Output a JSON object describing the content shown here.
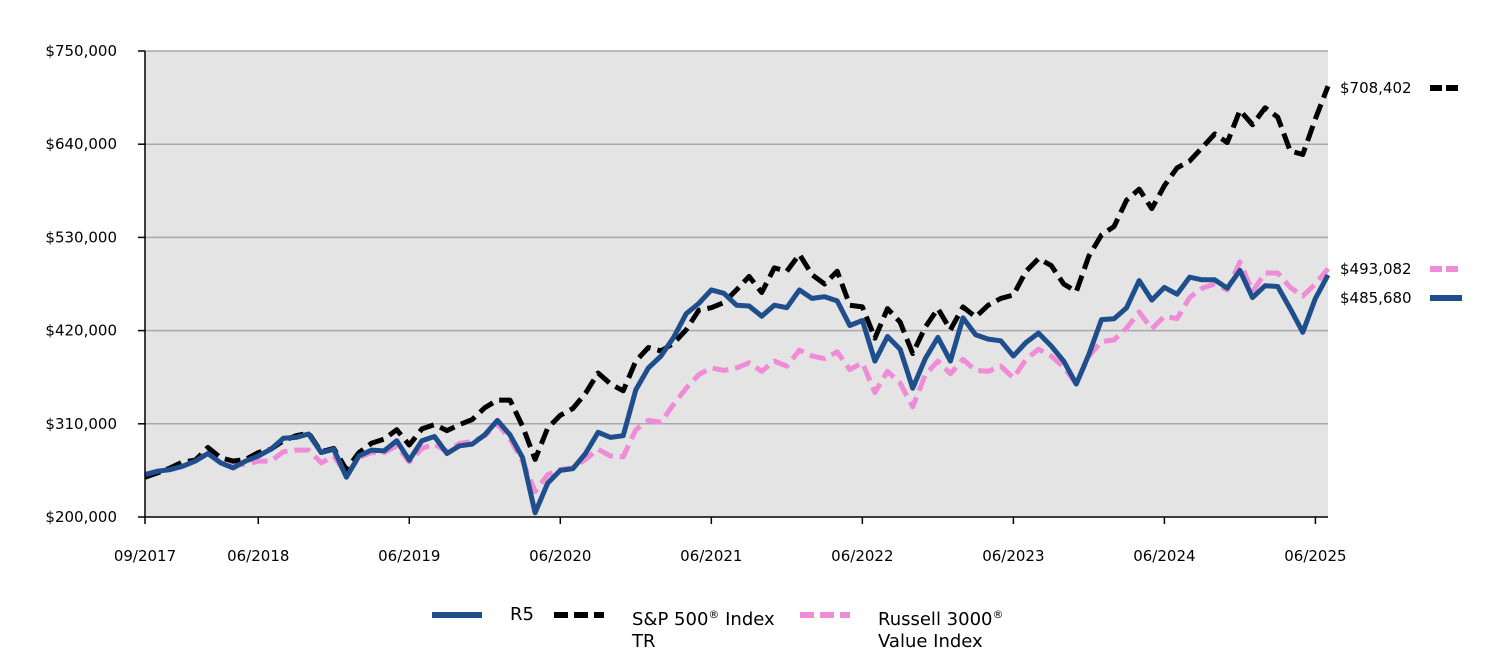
{
  "chart_data": {
    "type": "line",
    "title": "",
    "xlabel": "",
    "ylabel": "",
    "ylim": [
      200000,
      750000
    ],
    "yticks": [
      200000,
      310000,
      420000,
      530000,
      640000,
      750000
    ],
    "ytick_labels": [
      "$200,000",
      "$310,000",
      "$420,000",
      "$530,000",
      "$640,000",
      "$750,000"
    ],
    "xtick_labels": [
      "09/2017",
      "06/2018",
      "06/2019",
      "06/2020",
      "06/2021",
      "06/2022",
      "06/2023",
      "06/2024",
      "06/2025"
    ],
    "xtick_months": [
      0,
      9,
      21,
      33,
      45,
      57,
      69,
      81,
      93
    ],
    "x_start": "09/2017",
    "x_end": "06/2025",
    "plot_background": "#e4e4e4",
    "grid": true,
    "series": [
      {
        "name": "R5",
        "color": "#1f4e8c",
        "style": "solid",
        "end_label": "$485,680",
        "values": [
          250000,
          254000,
          256000,
          260000,
          266000,
          275000,
          264000,
          258000,
          266000,
          272000,
          280000,
          293000,
          294000,
          298000,
          276000,
          280000,
          247000,
          272000,
          279000,
          278000,
          290000,
          267000,
          290000,
          295000,
          275000,
          284000,
          286000,
          297000,
          314000,
          297000,
          270000,
          205000,
          240000,
          255000,
          257000,
          275000,
          300000,
          294000,
          296000,
          350000,
          376000,
          390000,
          412000,
          440000,
          452000,
          468000,
          464000,
          450000,
          449000,
          437000,
          450000,
          447000,
          468000,
          458000,
          460000,
          455000,
          426000,
          432000,
          384000,
          413000,
          398000,
          352000,
          387000,
          412000,
          384000,
          435000,
          415000,
          410000,
          408000,
          390000,
          406000,
          417000,
          402000,
          384000,
          357000,
          392000,
          433000,
          434000,
          447000,
          479000,
          456000,
          471000,
          463000,
          483000,
          480000,
          480000,
          470000,
          491000,
          459000,
          473000,
          472000,
          446000,
          418000,
          458000,
          485680
        ]
      },
      {
        "name": "S&P 500® Index TR",
        "name_line1": "S&P 500",
        "name_sup": "®",
        "name_rest": " Index",
        "name_line2": "TR",
        "color": "#000000",
        "style": "dashed",
        "end_label": "$708,402",
        "values": [
          247000,
          252000,
          258000,
          265000,
          267000,
          282000,
          270000,
          266000,
          268000,
          276000,
          280000,
          290000,
          296000,
          299000,
          277000,
          281000,
          256000,
          276000,
          287000,
          292000,
          303000,
          285000,
          304000,
          309000,
          302000,
          309000,
          315000,
          329000,
          338000,
          338000,
          307000,
          268000,
          305000,
          320000,
          328000,
          346000,
          370000,
          357000,
          349000,
          384000,
          400000,
          396000,
          405000,
          421000,
          444000,
          447000,
          453000,
          468000,
          484000,
          465000,
          494000,
          490000,
          510000,
          486000,
          475000,
          490000,
          450000,
          448000,
          411000,
          446000,
          430000,
          393000,
          424000,
          446000,
          421000,
          448000,
          436000,
          450000,
          458000,
          462000,
          490000,
          505000,
          497000,
          475000,
          466000,
          508000,
          533000,
          543000,
          574000,
          587000,
          564000,
          591000,
          612000,
          620000,
          636000,
          652000,
          642000,
          680000,
          663000,
          683000,
          672000,
          632000,
          628000,
          670000,
          708402
        ]
      },
      {
        "name": "Russell 3000® Value Index",
        "name_line1": "Russell 3000",
        "name_sup": "®",
        "name_rest": "",
        "name_line2": "Value Index",
        "color": "#f08bd8",
        "style": "dashed",
        "end_label": "$493,082",
        "values": [
          249000,
          254000,
          257000,
          262000,
          268000,
          276000,
          264000,
          262000,
          262000,
          266000,
          266000,
          277000,
          279000,
          279000,
          264000,
          272000,
          250000,
          270000,
          276000,
          276000,
          284000,
          265000,
          281000,
          286000,
          277000,
          287000,
          289000,
          296000,
          310000,
          292000,
          266000,
          230000,
          250000,
          256000,
          258000,
          268000,
          280000,
          272000,
          271000,
          303000,
          314000,
          312000,
          333000,
          352000,
          368000,
          376000,
          373000,
          376000,
          382000,
          372000,
          384000,
          378000,
          397000,
          390000,
          387000,
          395000,
          374000,
          382000,
          347000,
          372000,
          358000,
          330000,
          368000,
          384000,
          369000,
          386000,
          373000,
          372000,
          378000,
          364000,
          386000,
          398000,
          390000,
          377000,
          357000,
          390000,
          407000,
          409000,
          423000,
          442000,
          422000,
          437000,
          434000,
          459000,
          470000,
          475000,
          468000,
          501000,
          466000,
          488000,
          488000,
          471000,
          461000,
          475000,
          493082
        ]
      }
    ]
  }
}
